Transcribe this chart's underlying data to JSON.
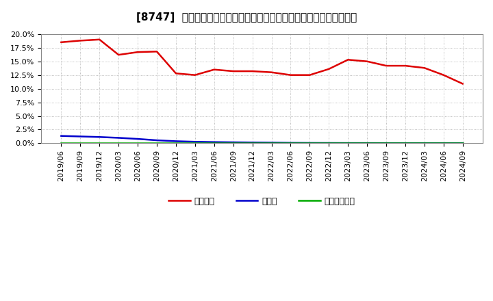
{
  "title": "[8747]  自己資本、のれん、繰延税金資産の総資産に対する比率の推移",
  "x_labels": [
    "2019/06",
    "2019/09",
    "2019/12",
    "2020/03",
    "2020/06",
    "2020/09",
    "2020/12",
    "2021/03",
    "2021/06",
    "2021/09",
    "2021/12",
    "2022/03",
    "2022/06",
    "2022/09",
    "2022/12",
    "2023/03",
    "2023/06",
    "2023/09",
    "2023/12",
    "2024/03",
    "2024/06",
    "2024/09"
  ],
  "jikoshihon": [
    18.5,
    18.8,
    19.0,
    16.2,
    16.7,
    16.8,
    12.8,
    12.5,
    13.5,
    13.2,
    13.2,
    13.0,
    12.5,
    12.5,
    13.6,
    15.3,
    15.0,
    14.2,
    14.2,
    13.8,
    12.5,
    10.9
  ],
  "noren": [
    1.35,
    1.25,
    1.15,
    1.0,
    0.8,
    0.55,
    0.38,
    0.28,
    0.22,
    0.18,
    0.15,
    0.12,
    0.08,
    0.06,
    0.05,
    0.04,
    0.04,
    0.03,
    0.03,
    0.03,
    0.03,
    0.03
  ],
  "kurinoze": [
    0.0,
    0.0,
    0.0,
    0.0,
    0.0,
    0.0,
    0.0,
    0.0,
    0.0,
    0.0,
    0.0,
    0.0,
    0.0,
    0.0,
    0.0,
    0.0,
    0.0,
    0.0,
    0.0,
    0.0,
    0.0,
    0.0
  ],
  "jikoshihon_color": "#dd0000",
  "noren_color": "#0000cc",
  "kurinoze_color": "#00aa00",
  "ylim": [
    0.0,
    20.0
  ],
  "yticks": [
    0.0,
    2.5,
    5.0,
    7.5,
    10.0,
    12.5,
    15.0,
    17.5,
    20.0
  ],
  "bg_color": "#ffffff",
  "grid_color": "#aaaaaa",
  "legend_jikoshihon": "自己資本",
  "legend_noren": "のれん",
  "legend_kurinoze": "繰延税金資産",
  "title_fontsize": 11,
  "tick_fontsize": 8,
  "legend_fontsize": 9
}
